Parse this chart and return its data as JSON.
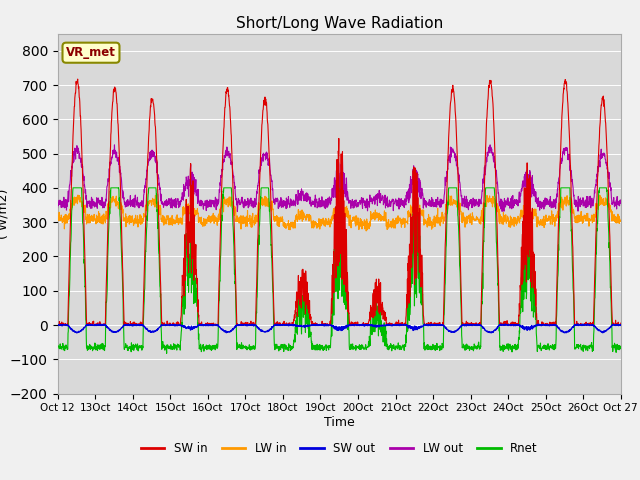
{
  "title": "Short/Long Wave Radiation",
  "xlabel": "Time",
  "ylabel": "( W/m2)",
  "ylim": [
    -200,
    850
  ],
  "yticks": [
    -200,
    -100,
    0,
    100,
    200,
    300,
    400,
    500,
    600,
    700,
    800
  ],
  "bg_color": "#d8d8d8",
  "plot_bg_color": "#d8d8d8",
  "colors": {
    "SW_in": "#dd0000",
    "LW_in": "#ff9900",
    "SW_out": "#0000dd",
    "LW_out": "#aa00aa",
    "Rnet": "#00bb00"
  },
  "legend_labels": [
    "SW in",
    "LW in",
    "SW out",
    "LW out",
    "Rnet"
  ],
  "station_label": "VR_met",
  "n_days": 15,
  "n_per_day": 144,
  "start_day": 12
}
